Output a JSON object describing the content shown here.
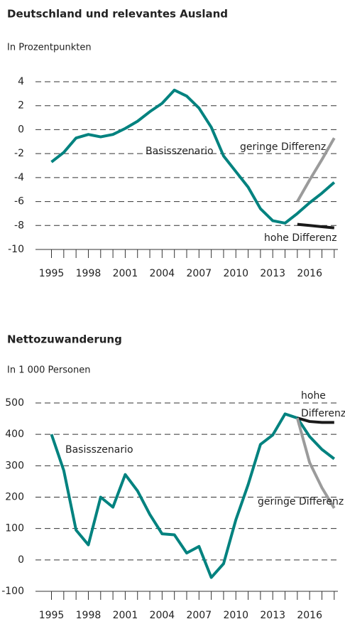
{
  "chart_data": [
    {
      "type": "line",
      "title": "Deutschland und relevantes Ausland",
      "subtitle": "In Prozentpunkten",
      "x": [
        1995,
        1996,
        1997,
        1998,
        1999,
        2000,
        2001,
        2002,
        2003,
        2004,
        2005,
        2006,
        2007,
        2008,
        2009,
        2010,
        2011,
        2012,
        2013,
        2014,
        2015,
        2016,
        2017,
        2018
      ],
      "xlim": [
        1993.7,
        2018.3
      ],
      "xticks": [
        1995,
        1998,
        2001,
        2004,
        2007,
        2010,
        2013,
        2016
      ],
      "ylim": [
        -10,
        4
      ],
      "yticks": [
        -10,
        -8,
        -6,
        -4,
        -2,
        0,
        2,
        4
      ],
      "grid": true,
      "series": [
        {
          "name": "Basisszenario",
          "color": "#00827f",
          "values": [
            -2.7,
            -1.9,
            -0.7,
            -0.4,
            -0.6,
            -0.4,
            0.1,
            0.7,
            1.5,
            2.2,
            3.3,
            2.8,
            1.8,
            0.2,
            -2.2,
            -3.5,
            -4.8,
            -6.6,
            -7.6,
            -7.8,
            -7.0,
            -6.1,
            -5.3,
            -4.4
          ]
        },
        {
          "name": "geringe Differenz",
          "color": "#9b9b9b",
          "values": [
            null,
            null,
            null,
            null,
            null,
            null,
            null,
            null,
            null,
            null,
            null,
            null,
            null,
            null,
            null,
            null,
            null,
            null,
            null,
            null,
            -6.0,
            -4.2,
            -2.5,
            -0.7
          ]
        },
        {
          "name": "hohe Differenz",
          "color": "#1a1a1a",
          "values": [
            null,
            null,
            null,
            null,
            null,
            null,
            null,
            null,
            null,
            null,
            null,
            null,
            null,
            null,
            null,
            null,
            null,
            null,
            null,
            null,
            -7.9,
            -8.0,
            -8.1,
            -8.2
          ]
        }
      ],
      "annotations": [
        {
          "text": "Basisszenario"
        },
        {
          "text": "geringe Differenz"
        },
        {
          "text": "hohe Differenz"
        }
      ]
    },
    {
      "type": "line",
      "title": "Nettozuwanderung",
      "subtitle": "In 1 000 Personen",
      "x": [
        1995,
        1996,
        1997,
        1998,
        1999,
        2000,
        2001,
        2002,
        2003,
        2004,
        2005,
        2006,
        2007,
        2008,
        2009,
        2010,
        2011,
        2012,
        2013,
        2014,
        2015,
        2016,
        2017,
        2018
      ],
      "xlim": [
        1993.7,
        2018.3
      ],
      "xticks": [
        1995,
        1998,
        2001,
        2004,
        2007,
        2010,
        2013,
        2016
      ],
      "ylim": [
        -100,
        500
      ],
      "yticks": [
        -100,
        0,
        100,
        200,
        300,
        400,
        500
      ],
      "grid": true,
      "series": [
        {
          "name": "Basisszenario",
          "color": "#00827f",
          "values": [
            400,
            285,
            95,
            48,
            200,
            168,
            272,
            220,
            145,
            83,
            80,
            22,
            43,
            -56,
            -12,
            128,
            240,
            368,
            398,
            465,
            452,
            393,
            352,
            322
          ]
        },
        {
          "name": "hohe Differenz",
          "color": "#1a1a1a",
          "values": [
            null,
            null,
            null,
            null,
            null,
            null,
            null,
            null,
            null,
            null,
            null,
            null,
            null,
            null,
            null,
            null,
            null,
            null,
            null,
            null,
            452,
            441,
            438,
            438
          ]
        },
        {
          "name": "geringe Differenz",
          "color": "#9b9b9b",
          "values": [
            null,
            null,
            null,
            null,
            null,
            null,
            null,
            null,
            null,
            null,
            null,
            null,
            null,
            null,
            null,
            null,
            null,
            null,
            null,
            null,
            452,
            310,
            230,
            165
          ]
        }
      ],
      "annotations": [
        {
          "text": "Basisszenario"
        },
        {
          "text": "hohe"
        },
        {
          "text": "Differenz"
        },
        {
          "text": "geringe Differenz"
        }
      ]
    }
  ]
}
